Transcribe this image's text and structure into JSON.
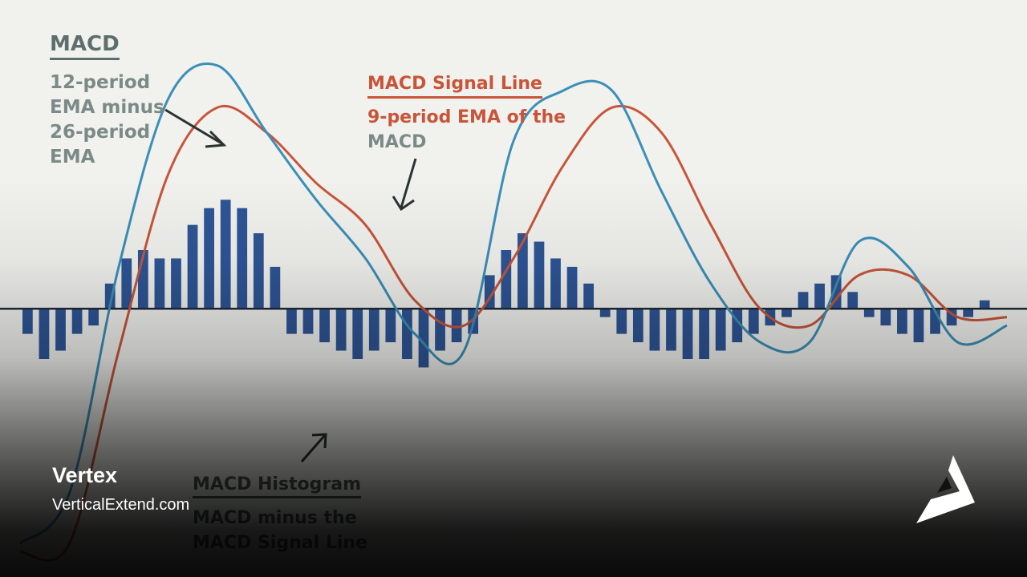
{
  "chart_data": {
    "type": "line",
    "x": [
      0,
      10,
      20,
      30,
      40,
      50,
      60,
      70,
      80,
      90,
      100,
      110,
      120,
      130,
      140,
      150,
      160,
      170,
      180,
      190,
      200
    ],
    "series": [
      {
        "name": "MACD",
        "color": "#3b8fb8",
        "values": [
          -28,
          -22,
          5,
          25,
          29,
          21,
          13,
          6,
          -3,
          -5,
          20,
          26,
          26,
          14,
          3,
          -4,
          -4,
          8,
          5,
          -4,
          -2
        ]
      },
      {
        "name": "MACD Signal Line",
        "color": "#c8553a",
        "values": [
          -29,
          -28,
          -5,
          16,
          24,
          21,
          15,
          10,
          1,
          -2,
          6,
          17,
          24,
          21,
          10,
          0,
          -2,
          4,
          4,
          -1,
          -1
        ]
      }
    ],
    "histogram": {
      "name": "MACD Histogram",
      "color": "#2e5596",
      "values": [
        -3,
        -6,
        -5,
        -3,
        -2,
        3,
        6,
        7,
        6,
        6,
        10,
        12,
        13,
        12,
        9,
        5,
        -3,
        -3,
        -4,
        -5,
        -6,
        -5,
        -4,
        -6,
        -7,
        -5,
        -4,
        -3,
        4,
        7,
        9,
        8,
        6,
        5,
        3,
        -1,
        -3,
        -4,
        -5,
        -5,
        -6,
        -6,
        -5,
        -4,
        -3,
        -2,
        -1,
        2,
        3,
        4,
        2,
        -1,
        -2,
        -3,
        -4,
        -3,
        -2,
        -1,
        1,
        0
      ]
    },
    "ylim": [
      -32,
      33
    ],
    "grid": false
  },
  "annotations": {
    "macd_title": "MACD",
    "macd_desc": "12-period\nEMA minus\n26-period\nEMA",
    "signal_title": "MACD Signal Line",
    "signal_desc_1": "9-period EMA of the",
    "signal_desc_2": "MACD",
    "hist_title": "MACD Histogram",
    "hist_desc": "MACD minus the\nMACD Signal Line"
  },
  "branding": {
    "name": "Vertex",
    "url": "VerticalExtend.com",
    "logo_icon": "vertex-triangle-logo-icon"
  },
  "colors": {
    "background": "#f1f2ee",
    "macd": "#3b8fb8",
    "signal": "#c8553a",
    "histogram": "#2e5596",
    "zero_line": "#1f2a3a"
  }
}
